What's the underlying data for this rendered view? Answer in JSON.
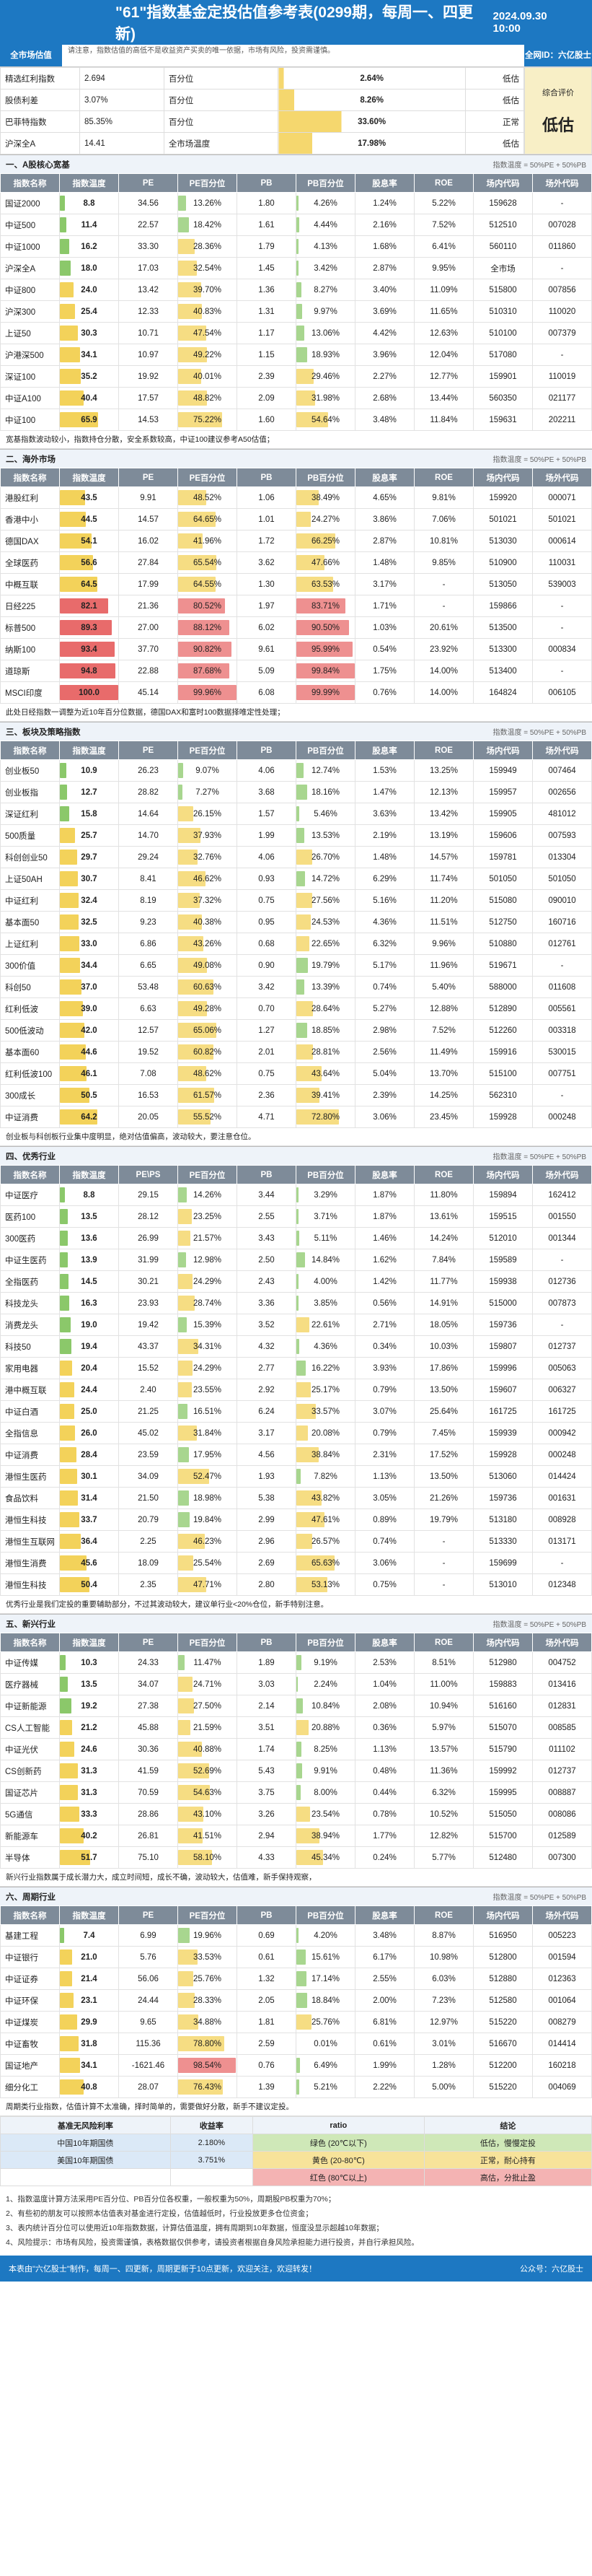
{
  "header": {
    "title": "\"61\"指数基金定投估值参考表(0299期，每周一、四更新)",
    "date": "2024.09.30 10:00"
  },
  "top_bar": {
    "left": "全市场估值",
    "note": "请注意，指数估值的高低不是收益资产买卖的唯一依据，市场有风险，投资需谨慎。",
    "right": "全网ID：六亿股士"
  },
  "market": {
    "rows": [
      {
        "name": "精选红利指数",
        "value": "2.694",
        "label": "百分位",
        "pct": "2.64%",
        "status": "低估"
      },
      {
        "name": "股债利差",
        "value": "3.07%",
        "label": "百分位",
        "pct": "8.26%",
        "status": "低估"
      },
      {
        "name": "巴菲特指数",
        "value": "85.35%",
        "label": "百分位",
        "pct": "33.60%",
        "status": "正常"
      },
      {
        "name": "沪深全A",
        "value": "14.41",
        "label": "全市场温度",
        "pct": "17.98%",
        "status": "低估"
      }
    ],
    "overall": "低估",
    "overall_label": "综合评价"
  },
  "legend": "指数温度 = 50%PE + 50%PB",
  "columns": [
    "指数名称",
    "指数温度",
    "PE",
    "PE百分位",
    "PB",
    "PB百分位",
    "股息率",
    "ROE",
    "场内代码",
    "场外代码"
  ],
  "sections": [
    {
      "title": "一、A股核心宽基",
      "columns": [
        "指数名称",
        "指数温度",
        "PE",
        "PE百分位",
        "PB",
        "PB百分位",
        "股息率",
        "ROE",
        "场内代码",
        "场外代码"
      ],
      "rows": [
        [
          "国证2000",
          "8.8",
          "34.56",
          "13.26%",
          "1.80",
          "4.26%",
          "1.24%",
          "5.22%",
          "159628",
          "-"
        ],
        [
          "中证500",
          "11.4",
          "22.57",
          "18.42%",
          "1.61",
          "4.44%",
          "2.16%",
          "7.52%",
          "512510",
          "007028"
        ],
        [
          "中证1000",
          "16.2",
          "33.30",
          "28.36%",
          "1.79",
          "4.13%",
          "1.68%",
          "6.41%",
          "560110",
          "011860"
        ],
        [
          "沪深全A",
          "18.0",
          "17.03",
          "32.54%",
          "1.45",
          "3.42%",
          "2.87%",
          "9.95%",
          "全市场",
          "-"
        ],
        [
          "中证800",
          "24.0",
          "13.42",
          "39.70%",
          "1.36",
          "8.27%",
          "3.40%",
          "11.09%",
          "515800",
          "007856"
        ],
        [
          "沪深300",
          "25.4",
          "12.33",
          "40.83%",
          "1.31",
          "9.97%",
          "3.69%",
          "11.65%",
          "510310",
          "110020"
        ],
        [
          "上证50",
          "30.3",
          "10.71",
          "47.54%",
          "1.17",
          "13.06%",
          "4.42%",
          "12.63%",
          "510100",
          "007379"
        ],
        [
          "沪港深500",
          "34.1",
          "10.97",
          "49.22%",
          "1.15",
          "18.93%",
          "3.96%",
          "12.04%",
          "517080",
          "-"
        ],
        [
          "深证100",
          "35.2",
          "19.92",
          "40.01%",
          "2.39",
          "29.46%",
          "2.27%",
          "12.77%",
          "159901",
          "110019"
        ],
        [
          "中证A100",
          "40.4",
          "17.57",
          "48.82%",
          "2.09",
          "31.98%",
          "2.68%",
          "13.44%",
          "560350",
          "021177"
        ],
        [
          "中证100",
          "65.9",
          "14.53",
          "75.22%",
          "1.60",
          "54.64%",
          "3.48%",
          "11.84%",
          "159631",
          "202211"
        ]
      ],
      "note": "宽基指数波动较小，指数持仓分散，安全系数较高，中证100建议参考A50估值；"
    },
    {
      "title": "二、海外市场",
      "columns": [
        "指数名称",
        "指数温度",
        "PE",
        "PE百分位",
        "PB",
        "PB百分位",
        "股息率",
        "ROE",
        "场内代码",
        "场外代码"
      ],
      "rows": [
        [
          "港股红利",
          "43.5",
          "9.91",
          "48.52%",
          "1.06",
          "38.49%",
          "4.65%",
          "9.81%",
          "159920",
          "000071"
        ],
        [
          "香港中小",
          "44.5",
          "14.57",
          "64.65%",
          "1.01",
          "24.27%",
          "3.86%",
          "7.06%",
          "501021",
          "501021"
        ],
        [
          "德国DAX",
          "54.1",
          "16.02",
          "41.96%",
          "1.72",
          "66.25%",
          "2.87%",
          "10.81%",
          "513030",
          "000614"
        ],
        [
          "全球医药",
          "56.6",
          "27.84",
          "65.54%",
          "3.62",
          "47.66%",
          "1.48%",
          "9.85%",
          "510900",
          "110031"
        ],
        [
          "中概互联",
          "64.5",
          "17.99",
          "64.55%",
          "1.30",
          "63.53%",
          "3.17%",
          "-",
          "513050",
          "539003"
        ],
        [
          "日经225",
          "82.1",
          "21.36",
          "80.52%",
          "1.97",
          "83.71%",
          "1.71%",
          "-",
          "159866",
          "-"
        ],
        [
          "标普500",
          "89.3",
          "27.00",
          "88.12%",
          "6.02",
          "90.50%",
          "1.03%",
          "20.61%",
          "513500",
          "-"
        ],
        [
          "纳斯100",
          "93.4",
          "37.70",
          "90.82%",
          "9.61",
          "95.99%",
          "0.54%",
          "23.92%",
          "513300",
          "000834"
        ],
        [
          "道琼斯",
          "94.8",
          "22.88",
          "87.68%",
          "5.09",
          "99.84%",
          "1.75%",
          "14.00%",
          "513400",
          "-"
        ],
        [
          "MSCI印度",
          "100.0",
          "45.14",
          "99.96%",
          "6.08",
          "99.99%",
          "0.76%",
          "14.00%",
          "164824",
          "006105"
        ]
      ],
      "note": "此处日经指数一调整为近10年百分位数据，德国DAX和富时100数据择唯定性处理；"
    },
    {
      "title": "三、板块及策略指数",
      "columns": [
        "指数名称",
        "指数温度",
        "PE",
        "PE百分位",
        "PB",
        "PB百分位",
        "股息率",
        "ROE",
        "场内代码",
        "场外代码"
      ],
      "rows": [
        [
          "创业板50",
          "10.9",
          "26.23",
          "9.07%",
          "4.06",
          "12.74%",
          "1.53%",
          "13.25%",
          "159949",
          "007464"
        ],
        [
          "创业板指",
          "12.7",
          "28.82",
          "7.27%",
          "3.68",
          "18.16%",
          "1.47%",
          "12.13%",
          "159957",
          "002656"
        ],
        [
          "深证红利",
          "15.8",
          "14.64",
          "26.15%",
          "1.57",
          "5.46%",
          "3.63%",
          "13.42%",
          "159905",
          "481012"
        ],
        [
          "500质量",
          "25.7",
          "14.70",
          "37.93%",
          "1.99",
          "13.53%",
          "2.19%",
          "13.19%",
          "159606",
          "007593"
        ],
        [
          "科创创业50",
          "29.7",
          "29.24",
          "32.76%",
          "4.06",
          "26.70%",
          "1.48%",
          "14.57%",
          "159781",
          "013304"
        ],
        [
          "上证50AH",
          "30.7",
          "8.41",
          "46.62%",
          "0.93",
          "14.72%",
          "6.29%",
          "11.74%",
          "501050",
          "501050"
        ],
        [
          "中证红利",
          "32.4",
          "8.19",
          "37.32%",
          "0.75",
          "27.56%",
          "5.16%",
          "11.20%",
          "515080",
          "090010"
        ],
        [
          "基本面50",
          "32.5",
          "9.23",
          "40.38%",
          "0.95",
          "24.53%",
          "4.36%",
          "11.51%",
          "512750",
          "160716"
        ],
        [
          "上证红利",
          "33.0",
          "6.86",
          "43.26%",
          "0.68",
          "22.65%",
          "6.32%",
          "9.96%",
          "510880",
          "012761"
        ],
        [
          "300价值",
          "34.4",
          "6.65",
          "49.08%",
          "0.90",
          "19.79%",
          "5.17%",
          "11.96%",
          "519671",
          "-"
        ],
        [
          "科创50",
          "37.0",
          "53.48",
          "60.63%",
          "3.42",
          "13.39%",
          "0.74%",
          "5.40%",
          "588000",
          "011608"
        ],
        [
          "红利低波",
          "39.0",
          "6.63",
          "49.28%",
          "0.70",
          "28.64%",
          "5.27%",
          "12.88%",
          "512890",
          "005561"
        ],
        [
          "500低波动",
          "42.0",
          "12.57",
          "65.06%",
          "1.27",
          "18.85%",
          "2.98%",
          "7.52%",
          "512260",
          "003318"
        ],
        [
          "基本面60",
          "44.6",
          "19.52",
          "60.82%",
          "2.01",
          "28.81%",
          "2.56%",
          "11.49%",
          "159916",
          "530015"
        ],
        [
          "红利低波100",
          "46.1",
          "7.08",
          "48.62%",
          "0.75",
          "43.64%",
          "5.04%",
          "13.70%",
          "515100",
          "007751"
        ],
        [
          "300成长",
          "50.5",
          "16.53",
          "61.57%",
          "2.36",
          "39.41%",
          "2.39%",
          "14.25%",
          "562310",
          "-"
        ],
        [
          "中证消费",
          "64.2",
          "20.05",
          "55.52%",
          "4.71",
          "72.80%",
          "3.06%",
          "23.45%",
          "159928",
          "000248"
        ]
      ],
      "note": "创业板与科创板行业集中度明显，绝对估值偏高，波动较大，要注意仓位。"
    },
    {
      "title": "四、优秀行业",
      "columns": [
        "指数名称",
        "指数温度",
        "PE\\PS",
        "PE百分位",
        "PB",
        "PB百分位",
        "股息率",
        "ROE",
        "场内代码",
        "场外代码"
      ],
      "rows": [
        [
          "中证医疗",
          "8.8",
          "29.15",
          "14.26%",
          "3.44",
          "3.29%",
          "1.87%",
          "11.80%",
          "159894",
          "162412"
        ],
        [
          "医药100",
          "13.5",
          "28.12",
          "23.25%",
          "2.55",
          "3.71%",
          "1.87%",
          "13.61%",
          "159515",
          "001550"
        ],
        [
          "300医药",
          "13.6",
          "26.99",
          "21.57%",
          "3.43",
          "5.11%",
          "1.46%",
          "14.24%",
          "512010",
          "001344"
        ],
        [
          "中证生医药",
          "13.9",
          "31.99",
          "12.98%",
          "2.50",
          "14.84%",
          "1.62%",
          "7.84%",
          "159589",
          "-"
        ],
        [
          "全指医药",
          "14.5",
          "30.21",
          "24.29%",
          "2.43",
          "4.00%",
          "1.42%",
          "11.77%",
          "159938",
          "012736"
        ],
        [
          "科技龙头",
          "16.3",
          "23.93",
          "28.74%",
          "3.36",
          "3.85%",
          "0.56%",
          "14.91%",
          "515000",
          "007873"
        ],
        [
          "消费龙头",
          "19.0",
          "19.42",
          "15.39%",
          "3.52",
          "22.61%",
          "2.71%",
          "18.05%",
          "159736",
          "-"
        ],
        [
          "科技50",
          "19.4",
          "43.37",
          "34.31%",
          "4.32",
          "4.36%",
          "0.34%",
          "10.03%",
          "159807",
          "012737"
        ],
        [
          "家用电器",
          "20.4",
          "15.52",
          "24.29%",
          "2.77",
          "16.22%",
          "3.93%",
          "17.86%",
          "159996",
          "005063"
        ],
        [
          "港中概互联",
          "24.4",
          "2.40",
          "23.55%",
          "2.92",
          "25.17%",
          "0.79%",
          "13.50%",
          "159607",
          "006327"
        ],
        [
          "中证白酒",
          "25.0",
          "21.25",
          "16.51%",
          "6.24",
          "33.57%",
          "3.07%",
          "25.64%",
          "161725",
          "161725"
        ],
        [
          "全指信息",
          "26.0",
          "45.02",
          "31.84%",
          "3.17",
          "20.08%",
          "0.79%",
          "7.45%",
          "159939",
          "000942"
        ],
        [
          "中证消费",
          "28.4",
          "23.59",
          "17.95%",
          "4.56",
          "38.84%",
          "2.31%",
          "17.52%",
          "159928",
          "000248"
        ],
        [
          "港恒生医药",
          "30.1",
          "34.09",
          "52.47%",
          "1.93",
          "7.82%",
          "1.13%",
          "13.50%",
          "513060",
          "014424"
        ],
        [
          "食品饮料",
          "31.4",
          "21.50",
          "18.98%",
          "5.38",
          "43.82%",
          "3.05%",
          "21.26%",
          "159736",
          "001631"
        ],
        [
          "港恒生科技",
          "33.7",
          "20.79",
          "19.84%",
          "2.99",
          "47.61%",
          "0.89%",
          "19.79%",
          "513180",
          "008928"
        ],
        [
          "港恒生互联网",
          "36.4",
          "2.25",
          "46.23%",
          "2.96",
          "26.57%",
          "0.74%",
          "-",
          "513330",
          "013171"
        ],
        [
          "港恒生消费",
          "45.6",
          "18.09",
          "25.54%",
          "2.69",
          "65.63%",
          "3.06%",
          "-",
          "159699",
          "-"
        ],
        [
          "港恒生科技",
          "50.4",
          "2.35",
          "47.71%",
          "2.80",
          "53.13%",
          "0.75%",
          "-",
          "513010",
          "012348"
        ]
      ],
      "note": "优秀行业是我们定投的重要辅助部分，不过其波动较大，建议单行业<20%仓位，新手特别注意。"
    },
    {
      "title": "五、新兴行业",
      "columns": [
        "指数名称",
        "指数温度",
        "PE",
        "PE百分位",
        "PB",
        "PB百分位",
        "股息率",
        "ROE",
        "场内代码",
        "场外代码"
      ],
      "rows": [
        [
          "中证传媒",
          "10.3",
          "24.33",
          "11.47%",
          "1.89",
          "9.19%",
          "2.53%",
          "8.51%",
          "512980",
          "004752"
        ],
        [
          "医疗器械",
          "13.5",
          "34.07",
          "24.71%",
          "3.03",
          "2.24%",
          "1.04%",
          "11.00%",
          "159883",
          "013416"
        ],
        [
          "中证新能源",
          "19.2",
          "27.38",
          "27.50%",
          "2.14",
          "10.84%",
          "2.08%",
          "10.94%",
          "516160",
          "012831"
        ],
        [
          "CS人工智能",
          "21.2",
          "45.88",
          "21.59%",
          "3.51",
          "20.88%",
          "0.36%",
          "5.97%",
          "515070",
          "008585"
        ],
        [
          "中证光伏",
          "24.6",
          "30.36",
          "40.88%",
          "1.74",
          "8.25%",
          "1.13%",
          "13.57%",
          "515790",
          "011102"
        ],
        [
          "CS创新药",
          "31.3",
          "41.59",
          "52.69%",
          "5.43",
          "9.91%",
          "0.48%",
          "11.36%",
          "159992",
          "012737"
        ],
        [
          "国证芯片",
          "31.3",
          "70.59",
          "54.63%",
          "3.75",
          "8.00%",
          "0.44%",
          "6.32%",
          "159995",
          "008887"
        ],
        [
          "5G通信",
          "33.3",
          "28.86",
          "43.10%",
          "3.26",
          "23.54%",
          "0.78%",
          "10.52%",
          "515050",
          "008086"
        ],
        [
          "新能源车",
          "40.2",
          "26.81",
          "41.51%",
          "2.94",
          "38.94%",
          "1.77%",
          "12.82%",
          "515700",
          "012589"
        ],
        [
          "半导体",
          "51.7",
          "75.10",
          "58.10%",
          "4.33",
          "45.34%",
          "0.24%",
          "5.77%",
          "512480",
          "007300"
        ]
      ],
      "note": "新兴行业指数属于成长潜力大，成立时间短，成长不确，波动较大，估值难，新手保持观察，"
    },
    {
      "title": "六、周期行业",
      "columns": [
        "指数名称",
        "指数温度",
        "PE",
        "PE百分位",
        "PB",
        "PB百分位",
        "股息率",
        "ROE",
        "场内代码",
        "场外代码"
      ],
      "rows": [
        [
          "基建工程",
          "7.4",
          "6.99",
          "19.96%",
          "0.69",
          "4.20%",
          "3.48%",
          "8.87%",
          "516950",
          "005223"
        ],
        [
          "中证银行",
          "21.0",
          "5.76",
          "33.53%",
          "0.61",
          "15.61%",
          "6.17%",
          "10.98%",
          "512800",
          "001594"
        ],
        [
          "中证证券",
          "21.4",
          "56.06",
          "25.76%",
          "1.32",
          "17.14%",
          "2.55%",
          "6.03%",
          "512880",
          "012363"
        ],
        [
          "中证环保",
          "23.1",
          "24.44",
          "28.33%",
          "2.05",
          "18.84%",
          "2.00%",
          "7.23%",
          "512580",
          "001064"
        ],
        [
          "中证煤炭",
          "29.9",
          "9.65",
          "34.88%",
          "1.81",
          "25.76%",
          "6.81%",
          "12.97%",
          "515220",
          "008279"
        ],
        [
          "中证畜牧",
          "31.8",
          "115.36",
          "78.80%",
          "2.59",
          "0.01%",
          "0.61%",
          "3.01%",
          "516670",
          "014414"
        ],
        [
          "国证地产",
          "34.1",
          "-1621.46",
          "98.54%",
          "0.76",
          "6.49%",
          "1.99%",
          "1.28%",
          "512200",
          "160218"
        ],
        [
          "细分化工",
          "40.8",
          "28.07",
          "76.43%",
          "1.39",
          "5.21%",
          "2.22%",
          "5.00%",
          "515220",
          "004069"
        ]
      ],
      "note": "周期类行业指数，估值计算不太准确，择时简单的，需要做好分散，新手不建议定投。"
    }
  ],
  "footer_table": {
    "headers": [
      "基准无风险利率",
      "收益率",
      "ratio",
      "结论"
    ],
    "rows": [
      [
        "中国10年期国债",
        "2.180%",
        "绿色 (20℃以下)",
        "低估，慢慢定投"
      ],
      [
        "美国10年期国债",
        "3.751%",
        "黄色 (20-80℃)",
        "正常，耐心持有"
      ],
      [
        "",
        "",
        "红色 (80℃以上)",
        "高估，分批止盈"
      ]
    ]
  },
  "explanation": [
    "1、指数温度计算方法采用PE百分位、PB百分位各权重，一般权重为50%，周期股PB权重为70%；",
    "2、有些初的朋友可以按照本估值表对基金进行定投，估值越低时，行业投放更多仓位资金；",
    "3、表内统计百分位可以使用近10年指数数据，计算估值温度，拥有周期到10年数据，恒度没显示超越10年数据；",
    "4、风险提示：市场有风险，投资需谨慎，表格数据仅供参考，请投资者根据自身风险承担能力进行投资，并自行承担风险。"
  ],
  "footer": {
    "left": "本表由\"六亿股士\"制作，每周一、四更新，周期更新于10点更新，欢迎关注，欢迎转发！",
    "right": "公众号：六亿股士"
  }
}
